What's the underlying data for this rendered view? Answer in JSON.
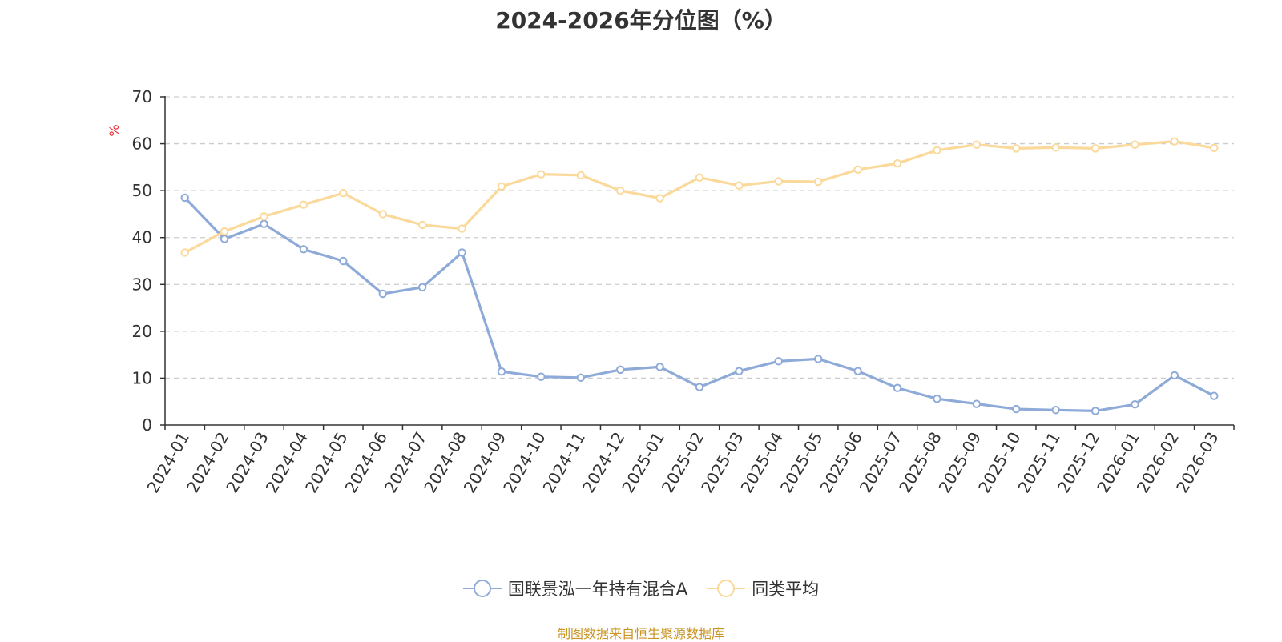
{
  "source_note": "制图数据来自恒生聚源数据库",
  "colors": {
    "series1": "#8eaad8",
    "series2": "#fad99a",
    "ylabel": "#e8292e",
    "source": "#c89422",
    "grid": "#cccccc",
    "axis": "#333333"
  },
  "chart_data": {
    "type": "line",
    "title": "2024-2026年分位图（%）",
    "xlabel": "",
    "ylabel": "%",
    "ylim": [
      0,
      70
    ],
    "yticks": [
      0,
      10,
      20,
      30,
      40,
      50,
      60,
      70
    ],
    "grid": true,
    "legend_position": "bottom",
    "categories": [
      "2024-01",
      "2024-02",
      "2024-03",
      "2024-04",
      "2024-05",
      "2024-06",
      "2024-07",
      "2024-08",
      "2024-09",
      "2024-10",
      "2024-11",
      "2024-12",
      "2025-01",
      "2025-02",
      "2025-03",
      "2025-04",
      "2025-05",
      "2025-06",
      "2025-07",
      "2025-08",
      "2025-09",
      "2025-10",
      "2025-11",
      "2025-12",
      "2026-01",
      "2026-02",
      "2026-03"
    ],
    "series": [
      {
        "name": "国联景泓一年持有混合A",
        "values": [
          48.5,
          39.7,
          42.9,
          37.5,
          35.0,
          28.0,
          29.4,
          36.8,
          11.4,
          10.3,
          10.1,
          11.8,
          12.4,
          8.1,
          11.5,
          13.6,
          14.1,
          11.5,
          7.9,
          5.6,
          4.5,
          3.4,
          3.2,
          3.0,
          4.4,
          10.6,
          6.2
        ]
      },
      {
        "name": "同类平均",
        "values": [
          36.8,
          41.3,
          44.5,
          47.0,
          49.5,
          45.0,
          42.7,
          41.9,
          50.9,
          53.5,
          53.3,
          50.0,
          48.4,
          52.8,
          51.1,
          52.0,
          51.9,
          54.5,
          55.8,
          58.6,
          59.8,
          59.0,
          59.2,
          59.0,
          59.8,
          60.5,
          59.1
        ]
      }
    ]
  }
}
